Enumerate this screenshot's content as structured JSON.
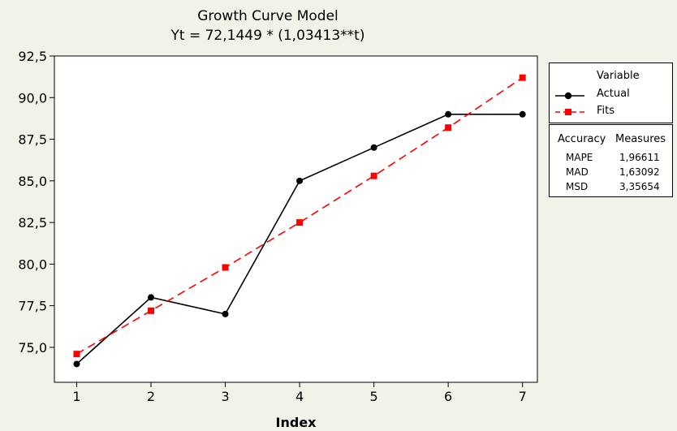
{
  "chart_data": {
    "type": "line",
    "title": "Growth Curve Model",
    "subtitle": "Yt = 72,1449 * (1,03413**t)",
    "xlabel": "Index",
    "ylabel": "",
    "x": [
      1,
      2,
      3,
      4,
      5,
      6,
      7
    ],
    "xticks": [
      "1",
      "2",
      "3",
      "4",
      "5",
      "6",
      "7"
    ],
    "yticks": [
      "75,0",
      "77,5",
      "80,0",
      "82,5",
      "85,0",
      "87,5",
      "90,0",
      "92,5"
    ],
    "xlim": [
      0.7,
      7.2
    ],
    "ylim": [
      72.9,
      92.5
    ],
    "grid": false,
    "legend_position": "right",
    "series": [
      {
        "name": "Actual",
        "values": [
          74.0,
          78.0,
          77.0,
          85.0,
          87.0,
          89.0,
          89.0
        ],
        "color": "#000000",
        "line": "solid",
        "marker": "circle"
      },
      {
        "name": "Fits",
        "values": [
          74.6,
          77.2,
          79.8,
          82.5,
          85.3,
          88.2,
          91.2
        ],
        "color": "#ff0000",
        "line": "dashed",
        "marker": "square"
      }
    ]
  },
  "legend": {
    "title": "Variable"
  },
  "accuracy": {
    "title_left": "Accuracy",
    "title_right": "Measures",
    "rows": [
      {
        "label": "MAPE",
        "value": "1,96611"
      },
      {
        "label": "MAD",
        "value": "1,63092"
      },
      {
        "label": "MSD",
        "value": "3,35654"
      }
    ]
  }
}
